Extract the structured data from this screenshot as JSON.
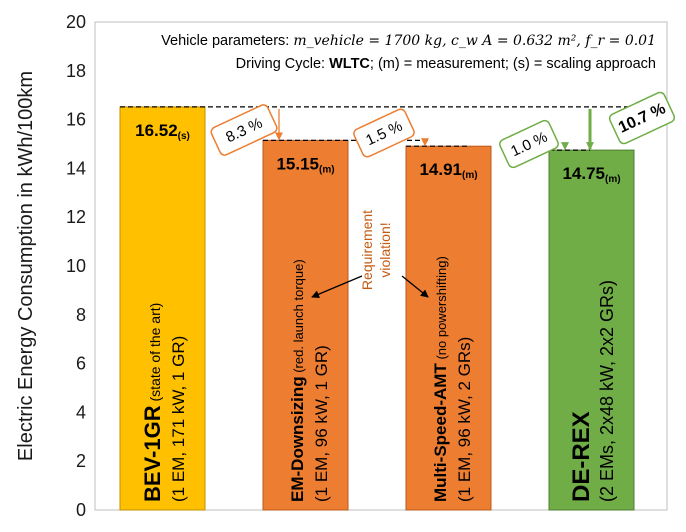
{
  "chart_data": {
    "type": "bar",
    "ylabel": "Electric Energy Consumption in kWh/100km",
    "ylim": [
      0,
      20
    ],
    "yticks": [
      0,
      2,
      4,
      6,
      8,
      10,
      12,
      14,
      16,
      18,
      20
    ],
    "grid": false,
    "categories": [
      {
        "name": "BEV-1GR",
        "name_suffix": " (state of the art)",
        "detail": "(1 EM, 171 kW, 1 GR)",
        "value": 16.52,
        "value_text": "16.52",
        "source": "(s)",
        "color": "#FFC000",
        "border": "#C09000"
      },
      {
        "name": "EM-Downsizing",
        "name_suffix": " (red. launch torque)",
        "detail": "(1 EM, 96 kW, 1 GR)",
        "value": 15.15,
        "value_text": "15.15",
        "source": "(m)",
        "color": "#ED7D31",
        "border": "#B85A1B"
      },
      {
        "name": "Multi-Speed-AMT",
        "name_suffix": " (no powershifting)",
        "detail": "(1 EM, 96 kW, 2 GRs)",
        "value": 14.91,
        "value_text": "14.91",
        "source": "(m)",
        "color": "#ED7D31",
        "border": "#B85A1B"
      },
      {
        "name": "DE-REX",
        "name_suffix": "",
        "detail": "(2 EMs, 2x48 kW, 2x2 GRs)",
        "value": 14.75,
        "value_text": "14.75",
        "source": "(m)",
        "color": "#70AD47",
        "border": "#4E7F30"
      }
    ],
    "reductions": [
      {
        "text": "8.3 %",
        "color": "#ED7D31"
      },
      {
        "text": "1.5 %",
        "color": "#ED7D31"
      },
      {
        "text": "1.0 %",
        "color": "#70AD47"
      },
      {
        "text": "10.7 %",
        "color": "#70AD47"
      }
    ],
    "annotation_violation": [
      "Requirement",
      "violation!"
    ]
  },
  "notes": {
    "line1_prefix": "Vehicle parameters: ",
    "line1_math": "m_vehicle = 1700 kg, c_w A = 0.632 m², f_r = 0.01",
    "line2_prefix": "Driving Cycle: ",
    "line2_bold": "WLTC",
    "line2_rest": "; (m) = measurement; (s) = scaling approach"
  }
}
